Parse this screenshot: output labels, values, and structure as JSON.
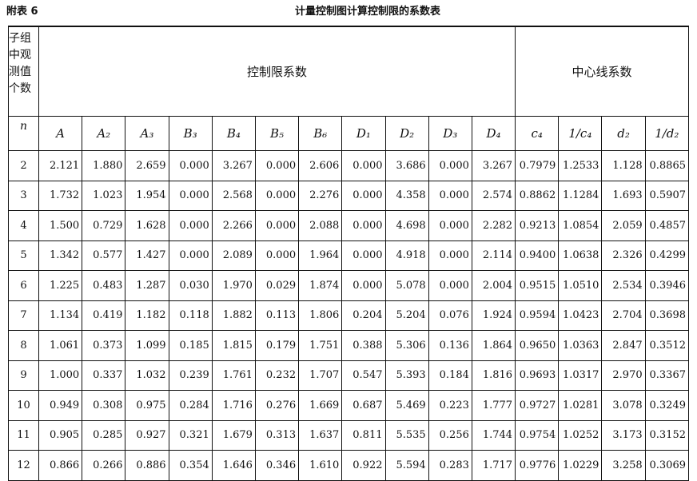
{
  "header": {
    "label": "附表 6",
    "title": "计量控制图计算控制限的系数表"
  },
  "table": {
    "n_header": "子组中观测值个数",
    "n_symbol": "n",
    "group_control": "控制限系数",
    "group_center": "中心线系数",
    "columns": [
      "A",
      "A₂",
      "A₃",
      "B₃",
      "B₄",
      "B₅",
      "B₆",
      "D₁",
      "D₂",
      "D₃",
      "D₄",
      "c₄",
      "1/c₄",
      "d₂",
      "1/d₂"
    ],
    "rows": [
      [
        "2",
        "2.121",
        "1.880",
        "2.659",
        "0.000",
        "3.267",
        "0.000",
        "2.606",
        "0.000",
        "3.686",
        "0.000",
        "3.267",
        "0.7979",
        "1.2533",
        "1.128",
        "0.8865"
      ],
      [
        "3",
        "1.732",
        "1.023",
        "1.954",
        "0.000",
        "2.568",
        "0.000",
        "2.276",
        "0.000",
        "4.358",
        "0.000",
        "2.574",
        "0.8862",
        "1.1284",
        "1.693",
        "0.5907"
      ],
      [
        "4",
        "1.500",
        "0.729",
        "1.628",
        "0.000",
        "2.266",
        "0.000",
        "2.088",
        "0.000",
        "4.698",
        "0.000",
        "2.282",
        "0.9213",
        "1.0854",
        "2.059",
        "0.4857"
      ],
      [
        "5",
        "1.342",
        "0.577",
        "1.427",
        "0.000",
        "2.089",
        "0.000",
        "1.964",
        "0.000",
        "4.918",
        "0.000",
        "2.114",
        "0.9400",
        "1.0638",
        "2.326",
        "0.4299"
      ],
      [
        "6",
        "1.225",
        "0.483",
        "1.287",
        "0.030",
        "1.970",
        "0.029",
        "1.874",
        "0.000",
        "5.078",
        "0.000",
        "2.004",
        "0.9515",
        "1.0510",
        "2.534",
        "0.3946"
      ],
      [
        "7",
        "1.134",
        "0.419",
        "1.182",
        "0.118",
        "1.882",
        "0.113",
        "1.806",
        "0.204",
        "5.204",
        "0.076",
        "1.924",
        "0.9594",
        "1.0423",
        "2.704",
        "0.3698"
      ],
      [
        "8",
        "1.061",
        "0.373",
        "1.099",
        "0.185",
        "1.815",
        "0.179",
        "1.751",
        "0.388",
        "5.306",
        "0.136",
        "1.864",
        "0.9650",
        "1.0363",
        "2.847",
        "0.3512"
      ],
      [
        "9",
        "1.000",
        "0.337",
        "1.032",
        "0.239",
        "1.761",
        "0.232",
        "1.707",
        "0.547",
        "5.393",
        "0.184",
        "1.816",
        "0.9693",
        "1.0317",
        "2.970",
        "0.3367"
      ],
      [
        "10",
        "0.949",
        "0.308",
        "0.975",
        "0.284",
        "1.716",
        "0.276",
        "1.669",
        "0.687",
        "5.469",
        "0.223",
        "1.777",
        "0.9727",
        "1.0281",
        "3.078",
        "0.3249"
      ],
      [
        "11",
        "0.905",
        "0.285",
        "0.927",
        "0.321",
        "1.679",
        "0.313",
        "1.637",
        "0.811",
        "5.535",
        "0.256",
        "1.744",
        "0.9754",
        "1.0252",
        "3.173",
        "0.3152"
      ],
      [
        "12",
        "0.866",
        "0.266",
        "0.886",
        "0.354",
        "1.646",
        "0.346",
        "1.610",
        "0.922",
        "5.594",
        "0.283",
        "1.717",
        "0.9776",
        "1.0229",
        "3.258",
        "0.3069"
      ]
    ]
  }
}
